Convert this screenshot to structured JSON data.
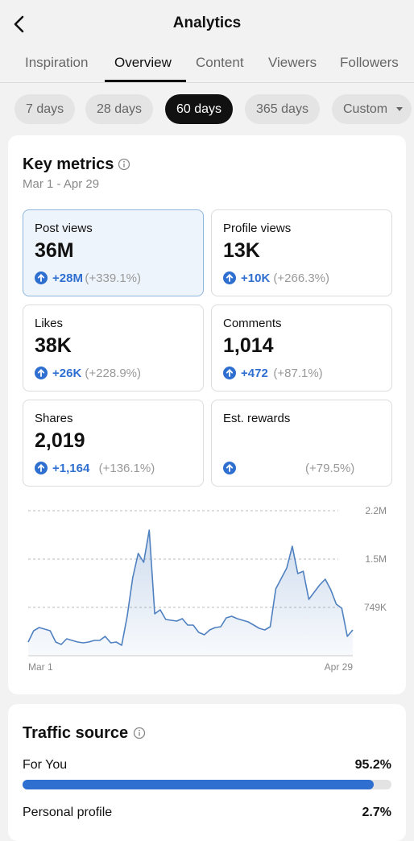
{
  "header": {
    "title": "Analytics"
  },
  "tabs": {
    "items": [
      "Inspiration",
      "Overview",
      "Content",
      "Viewers",
      "Followers"
    ],
    "active": 1
  },
  "ranges": {
    "items": [
      "7 days",
      "28 days",
      "60 days",
      "365 days",
      "Custom"
    ],
    "active": 2
  },
  "key_metrics": {
    "title": "Key metrics",
    "date_range": "Mar 1 - Apr 29",
    "cards": [
      {
        "label": "Post views",
        "value": "36M",
        "change": "+28M",
        "percent": "(+339.1%)"
      },
      {
        "label": "Profile views",
        "value": "13K",
        "change": "+10K",
        "percent": "(+266.3%)"
      },
      {
        "label": "Likes",
        "value": "38K",
        "change": "+26K",
        "percent": "(+228.9%)"
      },
      {
        "label": "Comments",
        "value": "1,014",
        "change": "+472",
        "percent": "(+87.1%)"
      },
      {
        "label": "Shares",
        "value": "2,019",
        "change": "+1,164",
        "percent": "(+136.1%)"
      },
      {
        "label": "Est. rewards",
        "percent": "(+79.5%)"
      }
    ],
    "selected_card": 0,
    "chart": {
      "type": "line",
      "color": "#4f80c0",
      "grid": true,
      "categories": [
        "Mar 1",
        null,
        null,
        null,
        null,
        null,
        null,
        null,
        null,
        null,
        null,
        null,
        null,
        null,
        null,
        null,
        null,
        null,
        null,
        null,
        null,
        null,
        null,
        null,
        null,
        null,
        null,
        null,
        null,
        null,
        null,
        null,
        null,
        null,
        null,
        null,
        null,
        null,
        null,
        null,
        null,
        null,
        null,
        null,
        null,
        null,
        null,
        null,
        null,
        null,
        null,
        null,
        null,
        null,
        null,
        null,
        null,
        null,
        null,
        "Apr 29"
      ],
      "values": [
        212000,
        387000,
        437000,
        412000,
        387000,
        212000,
        175000,
        262000,
        237000,
        212000,
        200000,
        212000,
        237000,
        237000,
        300000,
        200000,
        212000,
        162000,
        612000,
        1211000,
        1585000,
        1448000,
        1947000,
        649000,
        711000,
        562000,
        549000,
        537000,
        574000,
        474000,
        474000,
        362000,
        324000,
        399000,
        437000,
        449000,
        587000,
        612000,
        574000,
        549000,
        524000,
        474000,
        424000,
        399000,
        449000,
        1036000,
        1198000,
        1360000,
        1697000,
        1273000,
        1310000,
        874000,
        986000,
        1098000,
        1186000,
        1023000,
        799000,
        736000,
        300000,
        399000
      ],
      "ylim": [
        0,
        2247000
      ],
      "yticks": [
        {
          "value": 749000,
          "label": "749K"
        },
        {
          "value": 1498000,
          "label": "1.5M"
        },
        {
          "value": 2247000,
          "label": "2.2M"
        }
      ]
    }
  },
  "traffic_source": {
    "title": "Traffic source",
    "rows": [
      {
        "label": "For You",
        "percent": 95.2,
        "percent_label": "95.2%",
        "bar_visible": true
      },
      {
        "label": "Personal profile",
        "percent": 2.7,
        "percent_label": "2.7%",
        "bar_visible": false
      }
    ]
  }
}
